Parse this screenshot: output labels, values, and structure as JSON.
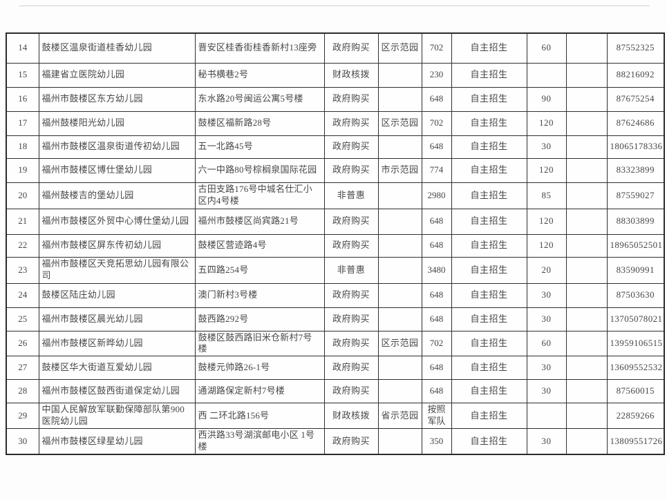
{
  "document": {
    "type": "scanned-kindergarten-list-table",
    "accent_colors": {
      "border": "#2a2a2a",
      "text": "#474747",
      "top_rule": "#cdcdcd",
      "background": "#fdfdfd"
    }
  },
  "table": {
    "visible_header": null,
    "rows": [
      {
        "no": "14",
        "name": "鼓楼区温泉街道桂香幼儿园",
        "address": "晋安区桂香街桂香新村13座旁",
        "funding": "政府购买",
        "level": "区示范园",
        "fee": "702",
        "enrollment": "自主招生",
        "quota": "60",
        "note": "",
        "phone": "87552325"
      },
      {
        "no": "15",
        "name": "福建省立医院幼儿园",
        "address": "秘书横巷2号",
        "funding": "财政核拨",
        "level": "",
        "fee": "230",
        "enrollment": "自主招生",
        "quota": "",
        "note": "",
        "phone": "88216092"
      },
      {
        "no": "16",
        "name": "福州市鼓楼区东方幼儿园",
        "address": "东水路20号闽运公寓5号楼",
        "funding": "政府购买",
        "level": "",
        "fee": "648",
        "enrollment": "自主招生",
        "quota": "90",
        "note": "",
        "phone": "87675254"
      },
      {
        "no": "17",
        "name": "福州鼓楼阳光幼儿园",
        "address": "鼓楼区福新路28号",
        "funding": "政府购买",
        "level": "区示范园",
        "fee": "702",
        "enrollment": "自主招生",
        "quota": "120",
        "note": "",
        "phone": "87624686"
      },
      {
        "no": "18",
        "name": "福州市鼓楼区温泉街道传初幼儿园",
        "address": "五一北路45号",
        "funding": "政府购买",
        "level": "",
        "fee": "648",
        "enrollment": "自主招生",
        "quota": "30",
        "note": "",
        "phone": "18065178336"
      },
      {
        "no": "19",
        "name": "福州市鼓楼区博仕堡幼儿园",
        "address": "六一中路80号棕榈泉国际花园",
        "funding": "政府购买",
        "level": "市示范园",
        "fee": "774",
        "enrollment": "自主招生",
        "quota": "120",
        "note": "",
        "phone": "83323899"
      },
      {
        "no": "20",
        "name": "福州鼓楼吉的堡幼儿园",
        "address": "古田支路176号中城名仕汇小区内4号楼",
        "funding": "非普惠",
        "level": "",
        "fee": "2980",
        "enrollment": "自主招生",
        "quota": "85",
        "note": "",
        "phone": "87559027"
      },
      {
        "no": "21",
        "name": "福州市鼓楼区外贸中心博仕堡幼儿园",
        "address": "福州市鼓楼区尚宾路21号",
        "funding": "政府购买",
        "level": "",
        "fee": "648",
        "enrollment": "自主招生",
        "quota": "120",
        "note": "",
        "phone": "88303899"
      },
      {
        "no": "22",
        "name": "福州市鼓楼区屏东传初幼儿园",
        "address": "鼓楼区营迹路4号",
        "funding": "政府购买",
        "level": "",
        "fee": "648",
        "enrollment": "自主招生",
        "quota": "120",
        "note": "",
        "phone": "18965052501"
      },
      {
        "no": "23",
        "name": "福州市鼓楼区天竞拓思幼儿园有限公司",
        "address": "五四路254号",
        "funding": "非普惠",
        "level": "",
        "fee": "3480",
        "enrollment": "自主招生",
        "quota": "20",
        "note": "",
        "phone": "83590991"
      },
      {
        "no": "24",
        "name": "鼓楼区陆庄幼儿园",
        "address": "澳门新村3号楼",
        "funding": "政府购买",
        "level": "",
        "fee": "648",
        "enrollment": "自主招生",
        "quota": "30",
        "note": "",
        "phone": "87503630"
      },
      {
        "no": "25",
        "name": "福州市鼓楼区晨光幼儿园",
        "address": "鼓西路292号",
        "funding": "政府购买",
        "level": "",
        "fee": "648",
        "enrollment": "自主招生",
        "quota": "30",
        "note": "",
        "phone": "13705078021"
      },
      {
        "no": "26",
        "name": "福州市鼓楼区新晔幼儿园",
        "address": "鼓楼区鼓西路旧米仓新村7号楼",
        "funding": "政府购买",
        "level": "区示范园",
        "fee": "702",
        "enrollment": "自主招生",
        "quota": "60",
        "note": "",
        "phone": "13959106515"
      },
      {
        "no": "27",
        "name": "鼓楼区华大街道互爱幼儿园",
        "address": "鼓楼元帅路26-1号",
        "funding": "政府购买",
        "level": "",
        "fee": "648",
        "enrollment": "自主招生",
        "quota": "30",
        "note": "",
        "phone": "13609552532"
      },
      {
        "no": "28",
        "name": "福州市鼓楼区鼓西街道保定幼儿园",
        "address": "通湖路保定新村7号楼",
        "funding": "政府购买",
        "level": "",
        "fee": "648",
        "enrollment": "自主招生",
        "quota": "30",
        "note": "",
        "phone": "87560015"
      },
      {
        "no": "29",
        "name": "中国人民解放军联勤保障部队第900医院幼儿园",
        "address": "西 二环北路156号",
        "funding": "财政核拨",
        "level": "省示范园",
        "fee": "按照军队",
        "enrollment": "自主招生",
        "quota": "",
        "note": "",
        "phone": "22859266"
      },
      {
        "no": "30",
        "name": "福州市鼓楼区绿星幼儿园",
        "address": "西洪路33号湖滨邮电小区 1号楼",
        "funding": "政府购买",
        "level": "",
        "fee": "350",
        "enrollment": "自主招生",
        "quota": "30",
        "note": "",
        "phone": "13809551726"
      }
    ]
  }
}
